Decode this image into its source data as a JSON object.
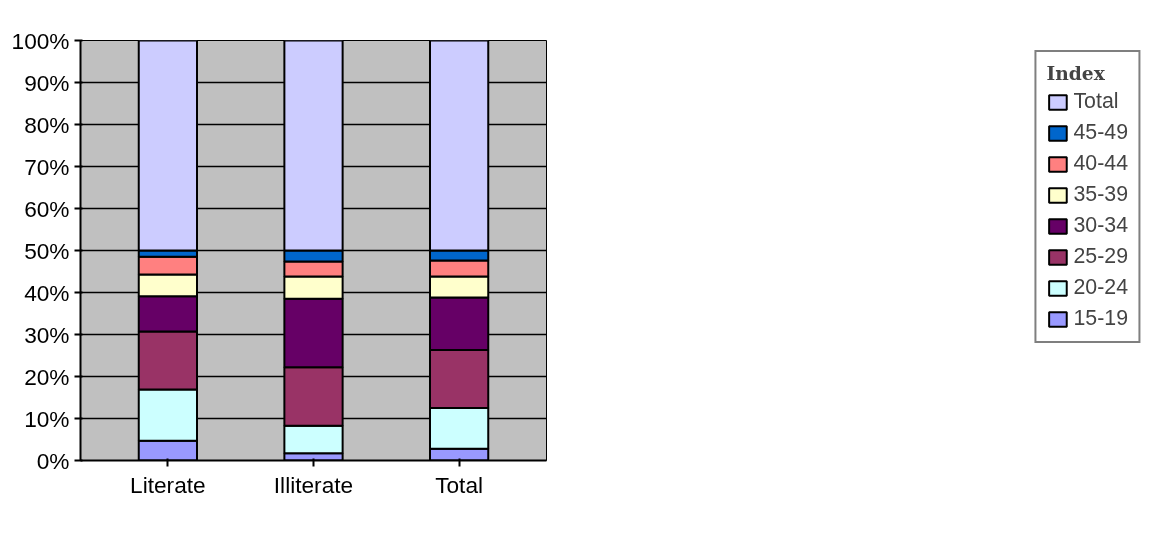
{
  "chart_data": {
    "type": "bar",
    "stacked": true,
    "categories": [
      "Literate",
      "Illiterate",
      "Total"
    ],
    "legend_title": "Index",
    "legend": "right",
    "grid": "y",
    "ylim": [
      0,
      100
    ],
    "yticks": [
      {
        "value": 0,
        "label": "0%"
      },
      {
        "value": 10,
        "label": "10%"
      },
      {
        "value": 20,
        "label": "20%"
      },
      {
        "value": 30,
        "label": "30%"
      },
      {
        "value": 40,
        "label": "40%"
      },
      {
        "value": 50,
        "label": "50%"
      },
      {
        "value": 60,
        "label": "60%"
      },
      {
        "value": 70,
        "label": "70%"
      },
      {
        "value": 80,
        "label": "80%"
      },
      {
        "value": 90,
        "label": "90%"
      },
      {
        "value": 100,
        "label": "100%"
      }
    ],
    "series": [
      {
        "name": "15-19",
        "color": "#9999ff",
        "values": [
          4.7,
          1.7,
          2.8
        ]
      },
      {
        "name": "20-24",
        "color": "#ccffff",
        "values": [
          12.2,
          6.6,
          9.7
        ]
      },
      {
        "name": "25-29",
        "color": "#993366",
        "values": [
          13.8,
          13.9,
          13.8
        ]
      },
      {
        "name": "30-34",
        "color": "#660066",
        "values": [
          8.4,
          16.3,
          12.5
        ]
      },
      {
        "name": "35-39",
        "color": "#ffffcc",
        "values": [
          5.2,
          5.3,
          5.0
        ]
      },
      {
        "name": "40-44",
        "color": "#ff8080",
        "values": [
          4.2,
          3.6,
          3.8
        ]
      },
      {
        "name": "45-49",
        "color": "#0066cc",
        "values": [
          1.5,
          2.6,
          2.4
        ]
      },
      {
        "name": "Total",
        "color": "#ccccff",
        "values": [
          50.0,
          50.0,
          50.0
        ]
      }
    ]
  }
}
